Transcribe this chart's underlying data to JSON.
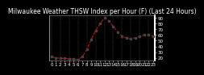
{
  "title": "Milwaukee Weather THSW Index per Hour (F) (Last 24 Hours)",
  "hours": [
    0,
    1,
    2,
    3,
    4,
    5,
    6,
    7,
    8,
    9,
    10,
    11,
    12,
    13,
    14,
    15,
    16,
    17,
    18,
    19,
    20,
    21,
    22,
    23
  ],
  "values": [
    22,
    20,
    19,
    19,
    18,
    18,
    17,
    22,
    35,
    52,
    68,
    80,
    90,
    85,
    75,
    65,
    58,
    55,
    53,
    55,
    58,
    60,
    60,
    58
  ],
  "line_color": "#dd0000",
  "marker_color": "#444444",
  "bg_color": "#000000",
  "plot_bg": "#000000",
  "grid_color": "#555555",
  "ylim": [
    15,
    95
  ],
  "ytick_values": [
    20,
    30,
    40,
    50,
    60,
    70,
    80,
    90
  ],
  "ytick_labels": [
    "20",
    "30",
    "40",
    "50",
    "60",
    "70",
    "80",
    "90"
  ],
  "title_fontsize": 5.5,
  "tick_fontsize": 4.0,
  "line_width": 0.8,
  "marker_size": 2.0
}
